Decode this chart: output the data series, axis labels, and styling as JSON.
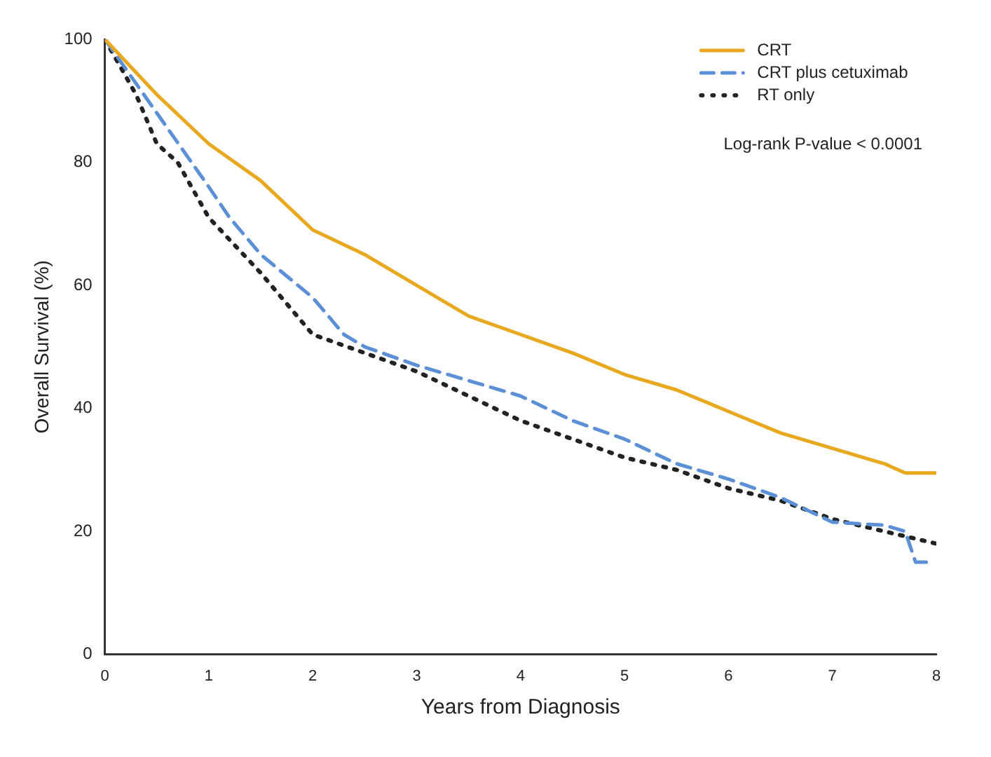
{
  "chart_data": {
    "type": "line",
    "xlabel": "Years from Diagnosis",
    "ylabel": "Overall Survival (%)",
    "xlim": [
      0,
      8
    ],
    "xticks": [
      0,
      1,
      2,
      3,
      4,
      5,
      6,
      7,
      8
    ],
    "ylim": [
      0,
      100
    ],
    "yticks": [
      0,
      20,
      40,
      60,
      80,
      100
    ],
    "grid": false,
    "legend": "top right",
    "marker": "none",
    "annotations": [
      "Log-rank P-value < 0.0001"
    ],
    "series": [
      {
        "name": "CRT",
        "color": "#e8a820",
        "line_style": "solid",
        "x": [
          0,
          0.5,
          1,
          1.5,
          2,
          2.5,
          3,
          3.5,
          4,
          4.5,
          5,
          5.5,
          6,
          6.5,
          7,
          7.5,
          7.7,
          8
        ],
        "values": [
          100,
          91,
          83,
          77,
          69,
          65,
          60,
          55,
          52,
          49,
          45.5,
          43,
          39.5,
          36,
          33.5,
          31,
          29.5,
          29.5
        ]
      },
      {
        "name": "CRT plus cetuximab",
        "color": "#5b8fd6",
        "line_style": "dashed",
        "x": [
          0,
          0.5,
          1,
          1.2,
          1.5,
          2,
          2.3,
          2.5,
          3,
          3.5,
          4,
          4.5,
          5,
          5.5,
          6,
          6.5,
          7,
          7.5,
          7.7,
          7.8,
          7.95
        ],
        "values": [
          100,
          88,
          76,
          71,
          65,
          58,
          52,
          50,
          47,
          44.5,
          42,
          38,
          35,
          31,
          28.5,
          25.5,
          21.5,
          21,
          20,
          15,
          15
        ]
      },
      {
        "name": "RT only",
        "color": "#222222",
        "line_style": "dotted",
        "x": [
          0,
          0.3,
          0.5,
          0.7,
          1,
          1.5,
          2,
          2.5,
          3,
          3.5,
          4,
          4.5,
          5,
          5.5,
          6,
          6.5,
          7,
          7.5,
          8
        ],
        "values": [
          100,
          91,
          83,
          80,
          71,
          62,
          52,
          49,
          46,
          42,
          38,
          35,
          32,
          30,
          27,
          25,
          22,
          20,
          18
        ]
      }
    ]
  }
}
